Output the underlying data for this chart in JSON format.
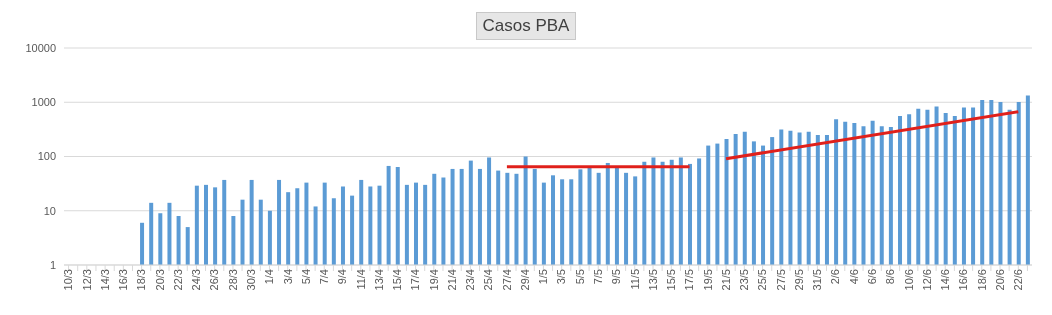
{
  "chart_data": {
    "type": "bar",
    "title": "Casos PBA",
    "categories": [
      "10/3",
      null,
      "12/3",
      null,
      "14/3",
      null,
      "16/3",
      null,
      "18/3",
      null,
      "20/3",
      null,
      "22/3",
      null,
      "24/3",
      null,
      "26/3",
      null,
      "28/3",
      null,
      "30/3",
      null,
      "1/4",
      null,
      "3/4",
      null,
      "5/4",
      null,
      "7/4",
      null,
      "9/4",
      null,
      "11/4",
      null,
      "13/4",
      null,
      "15/4",
      null,
      "17/4",
      null,
      "19/4",
      null,
      "21/4",
      null,
      "23/4",
      null,
      "25/4",
      null,
      "27/4",
      null,
      "29/4",
      null,
      "1/5",
      null,
      "3/5",
      null,
      "5/5",
      null,
      "7/5",
      null,
      "9/5",
      null,
      "11/5",
      null,
      "13/5",
      null,
      "15/5",
      null,
      "17/5",
      null,
      "19/5",
      null,
      "21/5",
      null,
      "23/5",
      null,
      "25/5",
      null,
      "27/5",
      null,
      "29/5",
      null,
      "31/5",
      null,
      "2/6",
      null,
      "4/6",
      null,
      "6/6",
      null,
      "8/6",
      null,
      "10/6",
      null,
      "12/6",
      null,
      "14/6",
      null,
      "16/6",
      null,
      "18/6",
      null,
      "20/6",
      null,
      "22/6",
      null
    ],
    "series": [
      {
        "color": "#5b9bd5",
        "values": [
          null,
          null,
          null,
          null,
          null,
          null,
          null,
          null,
          6,
          14,
          9,
          14,
          8,
          5,
          29,
          30,
          27,
          37,
          8,
          16,
          37,
          16,
          10,
          37,
          22,
          26,
          33,
          12,
          33,
          17,
          28,
          19,
          37,
          28,
          29,
          67,
          64,
          30,
          33,
          30,
          48,
          41,
          59,
          59,
          84,
          59,
          96,
          55,
          50,
          48,
          100,
          59,
          33,
          45,
          38,
          38,
          58,
          62,
          50,
          76,
          64,
          50,
          43,
          80,
          96,
          80,
          87,
          96,
          73,
          92,
          159,
          173,
          210,
          261,
          287,
          190,
          159,
          228,
          316,
          299,
          276,
          287,
          250,
          250,
          484,
          439,
          416,
          363,
          458,
          363,
          348,
          555,
          602,
          760,
          730,
          837,
          636,
          555,
          803,
          803,
          1101,
          1101,
          1014,
          730,
          1014,
          1334
        ]
      },
      {
        "type": "line",
        "color": "#e0201b",
        "x": [
          "27/4",
          "17/5"
        ],
        "values": [
          65,
          65
        ]
      },
      {
        "type": "line",
        "color": "#e0201b",
        "x": [
          "21/5",
          "22/6"
        ],
        "values": [
          91,
          667
        ]
      }
    ],
    "log": true,
    "ylim": [
      1,
      10000
    ],
    "yticks": [
      1,
      10,
      100,
      1000,
      10000
    ],
    "grid": "y",
    "legend": false,
    "marker": "none",
    "line_style": "solid"
  }
}
